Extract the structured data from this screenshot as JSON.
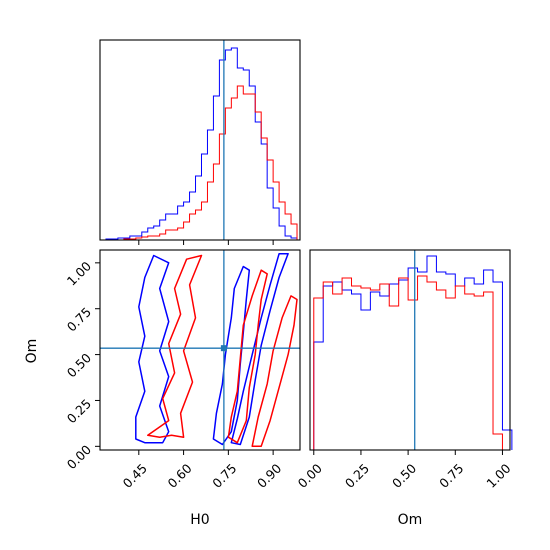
{
  "chart_data": [
    {
      "type": "histogram",
      "panel": "H0 marginal (top-left)",
      "x_range": [
        0.32,
        0.99
      ],
      "truth_line": {
        "x": 0.735,
        "color": "#1f77b4"
      },
      "series": [
        {
          "color": "#0000ff",
          "bins": [
            0.32,
            0.34,
            0.36,
            0.38,
            0.4,
            0.42,
            0.44,
            0.46,
            0.48,
            0.5,
            0.52,
            0.54,
            0.56,
            0.58,
            0.6,
            0.62,
            0.64,
            0.66,
            0.68,
            0.7,
            0.72,
            0.74,
            0.76,
            0.78,
            0.8,
            0.82,
            0.84,
            0.86,
            0.88,
            0.9,
            0.92,
            0.94,
            0.96,
            0.98
          ],
          "counts": [
            0,
            0.005,
            0.005,
            0.01,
            0.01,
            0.02,
            0.02,
            0.04,
            0.06,
            0.07,
            0.1,
            0.13,
            0.13,
            0.17,
            0.19,
            0.24,
            0.32,
            0.43,
            0.55,
            0.72,
            0.9,
            0.95,
            0.96,
            0.86,
            0.85,
            0.77,
            0.59,
            0.48,
            0.26,
            0.16,
            0.07,
            0.02,
            0.01
          ]
        },
        {
          "color": "#ff0000",
          "bins": [
            0.32,
            0.34,
            0.36,
            0.38,
            0.4,
            0.42,
            0.44,
            0.46,
            0.48,
            0.5,
            0.52,
            0.54,
            0.56,
            0.58,
            0.6,
            0.62,
            0.64,
            0.66,
            0.68,
            0.7,
            0.72,
            0.74,
            0.76,
            0.78,
            0.8,
            0.82,
            0.84,
            0.86,
            0.88,
            0.9,
            0.92,
            0.94,
            0.96,
            0.98
          ],
          "counts": [
            0,
            0,
            0,
            0,
            0.005,
            0.005,
            0.01,
            0.015,
            0.02,
            0.02,
            0.03,
            0.05,
            0.05,
            0.06,
            0.09,
            0.13,
            0.15,
            0.19,
            0.29,
            0.38,
            0.53,
            0.66,
            0.71,
            0.77,
            0.73,
            0.73,
            0.64,
            0.51,
            0.4,
            0.29,
            0.19,
            0.13,
            0.08
          ]
        }
      ]
    },
    {
      "type": "contour",
      "panel": "H0 vs Om (bottom-left)",
      "xlabel": "H0",
      "ylabel": "Om",
      "xlim": [
        0.32,
        0.99
      ],
      "ylim": [
        -0.02,
        1.07
      ],
      "xticks": [
        "0.45",
        "0.60",
        "0.75",
        "0.90"
      ],
      "yticks": [
        "0.00",
        "0.25",
        "0.50",
        "0.75",
        "1.00"
      ],
      "truth_point": {
        "x": 0.735,
        "y": 0.535,
        "color": "#1f77b4"
      },
      "series": [
        {
          "color": "#0000ff",
          "contours": [
            [
              [
                0.44,
                0.04
              ],
              [
                0.47,
                0.02
              ],
              [
                0.53,
                0.02
              ],
              [
                0.55,
                0.08
              ],
              [
                0.52,
                0.22
              ],
              [
                0.55,
                0.38
              ],
              [
                0.52,
                0.52
              ],
              [
                0.55,
                0.68
              ],
              [
                0.52,
                0.86
              ],
              [
                0.55,
                1.0
              ],
              [
                0.5,
                1.04
              ],
              [
                0.47,
                0.92
              ],
              [
                0.45,
                0.76
              ],
              [
                0.47,
                0.6
              ],
              [
                0.45,
                0.46
              ],
              [
                0.47,
                0.3
              ],
              [
                0.44,
                0.16
              ]
            ],
            [
              [
                0.7,
                0.04
              ],
              [
                0.73,
                0.01
              ],
              [
                0.76,
                0.08
              ],
              [
                0.78,
                0.25
              ],
              [
                0.79,
                0.45
              ],
              [
                0.8,
                0.62
              ],
              [
                0.81,
                0.8
              ],
              [
                0.82,
                0.96
              ],
              [
                0.8,
                0.98
              ],
              [
                0.77,
                0.86
              ],
              [
                0.76,
                0.7
              ],
              [
                0.74,
                0.5
              ],
              [
                0.73,
                0.34
              ],
              [
                0.71,
                0.18
              ]
            ],
            [
              [
                0.76,
                0.02
              ],
              [
                0.79,
                0.01
              ],
              [
                0.82,
                0.16
              ],
              [
                0.84,
                0.36
              ],
              [
                0.86,
                0.55
              ],
              [
                0.89,
                0.74
              ],
              [
                0.92,
                0.92
              ],
              [
                0.95,
                1.05
              ],
              [
                0.92,
                1.05
              ],
              [
                0.89,
                0.88
              ],
              [
                0.86,
                0.7
              ],
              [
                0.83,
                0.5
              ],
              [
                0.8,
                0.3
              ],
              [
                0.78,
                0.15
              ]
            ]
          ]
        },
        {
          "color": "#ff0000",
          "contours": [
            [
              [
                0.48,
                0.06
              ],
              [
                0.52,
                0.05
              ],
              [
                0.56,
                0.06
              ],
              [
                0.6,
                0.05
              ],
              [
                0.59,
                0.18
              ],
              [
                0.63,
                0.35
              ],
              [
                0.6,
                0.52
              ],
              [
                0.64,
                0.7
              ],
              [
                0.62,
                0.88
              ],
              [
                0.66,
                1.04
              ],
              [
                0.61,
                1.02
              ],
              [
                0.57,
                0.86
              ],
              [
                0.59,
                0.72
              ],
              [
                0.55,
                0.56
              ],
              [
                0.57,
                0.4
              ],
              [
                0.53,
                0.26
              ],
              [
                0.55,
                0.14
              ]
            ],
            [
              [
                0.75,
                0.05
              ],
              [
                0.78,
                0.02
              ],
              [
                0.81,
                0.14
              ],
              [
                0.82,
                0.32
              ],
              [
                0.84,
                0.5
              ],
              [
                0.85,
                0.66
              ],
              [
                0.86,
                0.8
              ],
              [
                0.88,
                0.94
              ],
              [
                0.86,
                0.96
              ],
              [
                0.83,
                0.82
              ],
              [
                0.8,
                0.66
              ],
              [
                0.79,
                0.48
              ],
              [
                0.78,
                0.3
              ],
              [
                0.76,
                0.16
              ]
            ],
            [
              [
                0.83,
                0.0
              ],
              [
                0.86,
                0.0
              ],
              [
                0.89,
                0.14
              ],
              [
                0.92,
                0.32
              ],
              [
                0.95,
                0.5
              ],
              [
                0.97,
                0.66
              ],
              [
                0.98,
                0.8
              ],
              [
                0.96,
                0.82
              ],
              [
                0.93,
                0.7
              ],
              [
                0.9,
                0.52
              ],
              [
                0.88,
                0.34
              ],
              [
                0.85,
                0.16
              ]
            ]
          ]
        }
      ]
    },
    {
      "type": "histogram",
      "panel": "Om marginal (bottom-right)",
      "xlabel": "Om",
      "x_range": [
        -0.02,
        1.04
      ],
      "xticks": [
        "0.00",
        "0.25",
        "0.50",
        "0.75",
        "1.00"
      ],
      "truth_line": {
        "x": 0.535,
        "color": "#1f77b4"
      },
      "series": [
        {
          "color": "#0000ff",
          "bins": [
            0.0,
            0.05,
            0.1,
            0.15,
            0.2,
            0.25,
            0.3,
            0.35,
            0.4,
            0.45,
            0.5,
            0.55,
            0.6,
            0.65,
            0.7,
            0.75,
            0.8,
            0.85,
            0.9,
            0.95,
            1.0
          ],
          "counts": [
            0.54,
            0.82,
            0.84,
            0.8,
            0.78,
            0.7,
            0.79,
            0.77,
            0.83,
            0.85,
            0.91,
            0.89,
            0.97,
            0.89,
            0.88,
            0.82,
            0.86,
            0.83,
            0.9,
            0.84,
            0.1
          ]
        },
        {
          "color": "#ff0000",
          "bins": [
            0.0,
            0.05,
            0.1,
            0.15,
            0.2,
            0.25,
            0.3,
            0.35,
            0.4,
            0.45,
            0.5,
            0.55,
            0.6,
            0.65,
            0.7,
            0.75,
            0.8,
            0.85,
            0.9,
            0.95
          ],
          "counts": [
            0.76,
            0.84,
            0.78,
            0.86,
            0.82,
            0.81,
            0.8,
            0.83,
            0.72,
            0.86,
            0.75,
            0.87,
            0.84,
            0.8,
            0.76,
            0.82,
            0.78,
            0.77,
            0.79,
            0.08
          ]
        }
      ]
    }
  ]
}
